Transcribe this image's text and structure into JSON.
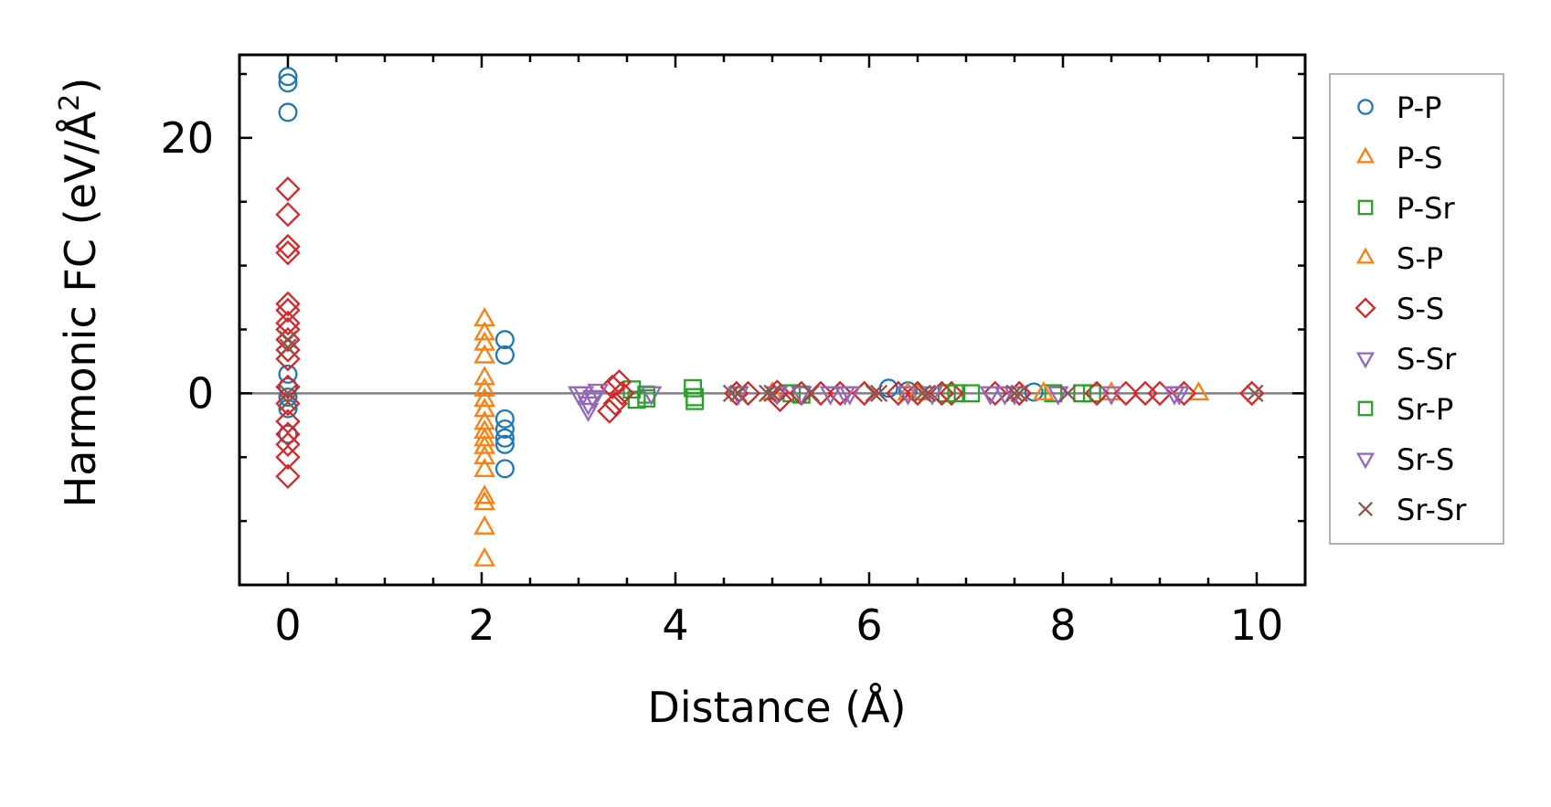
{
  "chart_data": {
    "type": "scatter",
    "title": "",
    "xlabel": "Distance (Å)",
    "ylabel_main": "Harmonic FC (eV/Å",
    "ylabel_sup": "2",
    "ylabel_end": ")",
    "xlim": [
      -0.5,
      10.5
    ],
    "ylim": [
      -15,
      26.5
    ],
    "xticks": [
      0,
      2,
      4,
      6,
      8,
      10
    ],
    "xtick_labels": [
      "0",
      "2",
      "4",
      "6",
      "8",
      "10"
    ],
    "yticks": [
      0,
      20
    ],
    "ytick_labels": [
      "0",
      "20"
    ],
    "zero_line": 0,
    "legend_position": "outside-right",
    "series": [
      {
        "name": "P-P",
        "marker": "circle",
        "color": "#1f77b4",
        "points": [
          [
            0,
            24.8
          ],
          [
            0,
            24.3
          ],
          [
            0,
            22
          ],
          [
            0,
            1.5
          ],
          [
            0,
            0.5
          ],
          [
            0,
            -0.3
          ],
          [
            0,
            -1.2
          ],
          [
            0,
            -3.2
          ],
          [
            2.24,
            4.2
          ],
          [
            2.24,
            3
          ],
          [
            2.24,
            -2
          ],
          [
            2.24,
            -2.8
          ],
          [
            2.24,
            -3.5
          ],
          [
            2.24,
            -4
          ],
          [
            2.24,
            -5.9
          ],
          [
            6.2,
            0.4
          ],
          [
            6.4,
            0.2
          ],
          [
            7.7,
            0.1
          ]
        ]
      },
      {
        "name": "P-S",
        "marker": "triangle-up",
        "color": "#ff7f0e",
        "points": [
          [
            2.03,
            5.8
          ],
          [
            2.03,
            4.7
          ],
          [
            2.03,
            3.9
          ],
          [
            2.03,
            2.9
          ],
          [
            2.03,
            1.2
          ],
          [
            2.03,
            0.3
          ],
          [
            2.03,
            -0.5
          ],
          [
            2.03,
            -1.3
          ],
          [
            2.03,
            -2.3
          ],
          [
            2.03,
            -3
          ],
          [
            2.03,
            -3.6
          ],
          [
            2.03,
            -4.2
          ],
          [
            2.03,
            -5
          ],
          [
            2.03,
            -6
          ],
          [
            2.03,
            -8.1
          ],
          [
            2.03,
            -8.6
          ],
          [
            2.03,
            -10.5
          ],
          [
            2.03,
            -13
          ],
          [
            6.4,
            0
          ],
          [
            9.4,
            0
          ]
        ]
      },
      {
        "name": "P-Sr",
        "marker": "square",
        "color": "#2ca02c",
        "points": [
          [
            3.55,
            0.3
          ],
          [
            3.6,
            -0.5
          ],
          [
            3.7,
            -0.1
          ],
          [
            4.18,
            0.4
          ],
          [
            4.2,
            -0.3
          ],
          [
            5.2,
            0
          ],
          [
            5.3,
            -0.1
          ],
          [
            6.8,
            0
          ],
          [
            7.05,
            0
          ],
          [
            7.9,
            0
          ],
          [
            8.3,
            0
          ]
        ]
      },
      {
        "name": "S-P",
        "marker": "triangle-up",
        "color": "#ff7f0e",
        "points": [
          [
            5.0,
            0
          ],
          [
            6.5,
            0
          ],
          [
            7.8,
            0
          ],
          [
            8.5,
            0
          ]
        ]
      },
      {
        "name": "S-S",
        "marker": "diamond",
        "color": "#d62728",
        "points": [
          [
            0,
            16
          ],
          [
            0,
            14
          ],
          [
            0,
            11.5
          ],
          [
            0,
            11
          ],
          [
            0,
            7
          ],
          [
            0,
            6.5
          ],
          [
            0,
            5.5
          ],
          [
            0,
            5
          ],
          [
            0,
            4.2
          ],
          [
            0,
            3.4
          ],
          [
            0,
            2.7
          ],
          [
            0,
            0.5
          ],
          [
            0,
            -0.8
          ],
          [
            0,
            -2.2
          ],
          [
            0,
            -3.2
          ],
          [
            0,
            -4
          ],
          [
            0,
            -5
          ],
          [
            0,
            -6.5
          ],
          [
            3.32,
            -1.4
          ],
          [
            3.35,
            0.5
          ],
          [
            3.38,
            -0.8
          ],
          [
            3.42,
            0.9
          ],
          [
            3.45,
            0
          ],
          [
            4.63,
            0
          ],
          [
            4.75,
            0
          ],
          [
            5.05,
            0.1
          ],
          [
            5.08,
            -0.5
          ],
          [
            5.3,
            0
          ],
          [
            5.5,
            0
          ],
          [
            5.7,
            0
          ],
          [
            5.95,
            0
          ],
          [
            6.3,
            0
          ],
          [
            6.5,
            0
          ],
          [
            6.75,
            0
          ],
          [
            6.85,
            0
          ],
          [
            7.3,
            0
          ],
          [
            7.55,
            0
          ],
          [
            8.35,
            0
          ],
          [
            8.65,
            0
          ],
          [
            8.85,
            0
          ],
          [
            9.0,
            0
          ],
          [
            9.25,
            0
          ],
          [
            9.95,
            0
          ]
        ]
      },
      {
        "name": "S-Sr",
        "marker": "triangle-down",
        "color": "#9467bd",
        "points": [
          [
            3.05,
            0
          ],
          [
            3.1,
            -0.8
          ],
          [
            3.15,
            -0.3
          ],
          [
            3.2,
            0.2
          ],
          [
            3.75,
            0
          ],
          [
            4.65,
            0
          ],
          [
            5.05,
            0
          ],
          [
            5.3,
            0
          ],
          [
            5.6,
            0
          ],
          [
            5.75,
            0
          ],
          [
            6.4,
            0
          ],
          [
            6.65,
            0
          ],
          [
            7.25,
            0
          ],
          [
            7.5,
            0
          ],
          [
            7.95,
            0
          ],
          [
            8.5,
            0
          ],
          [
            9.15,
            0
          ]
        ]
      },
      {
        "name": "Sr-P",
        "marker": "square",
        "color": "#2ca02c",
        "points": [
          [
            3.7,
            -0.4
          ],
          [
            4.2,
            -0.6
          ],
          [
            6.9,
            0
          ],
          [
            8.2,
            0
          ]
        ]
      },
      {
        "name": "Sr-S",
        "marker": "triangle-down",
        "color": "#9467bd",
        "points": [
          [
            3.0,
            0
          ],
          [
            3.1,
            -1.3
          ],
          [
            5.8,
            0
          ],
          [
            7.4,
            0
          ],
          [
            9.2,
            0
          ]
        ]
      },
      {
        "name": "Sr-Sr",
        "marker": "cross",
        "color": "#8c564b",
        "points": [
          [
            0,
            4.2
          ],
          [
            0,
            3.6
          ],
          [
            0,
            0
          ],
          [
            0,
            -0.7
          ],
          [
            4.58,
            0
          ],
          [
            4.65,
            0
          ],
          [
            4.95,
            0
          ],
          [
            5.0,
            0
          ],
          [
            5.4,
            0
          ],
          [
            6.05,
            0
          ],
          [
            6.1,
            0
          ],
          [
            6.55,
            0
          ],
          [
            6.6,
            0
          ],
          [
            7.5,
            0
          ],
          [
            7.55,
            0
          ],
          [
            8.05,
            0
          ],
          [
            9.98,
            0
          ]
        ]
      }
    ]
  }
}
